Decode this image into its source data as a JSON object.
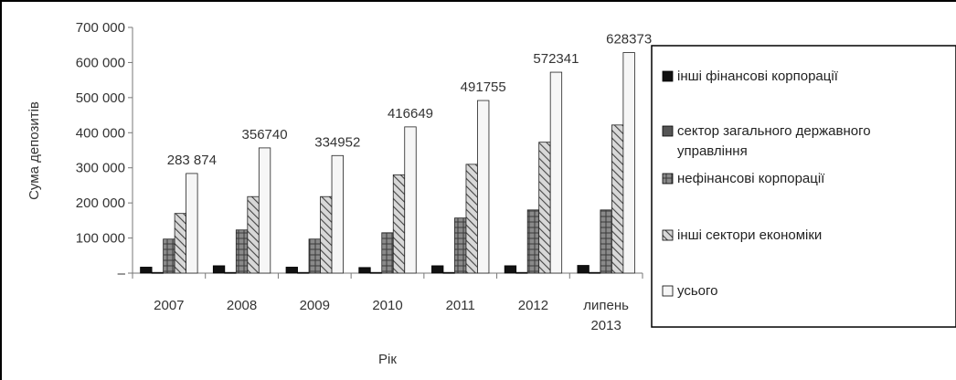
{
  "chart_data": {
    "type": "bar",
    "title": "",
    "xlabel": "Рік",
    "ylabel": "Сума депозитів",
    "ylim": [
      0,
      700000
    ],
    "yticks": [
      "–",
      "100 000",
      "200 000",
      "300 000",
      "400 000",
      "500 000",
      "600 000",
      "700 000"
    ],
    "categories": [
      "2007",
      "2008",
      "2009",
      "2010",
      "2011",
      "2012",
      "липень 2013"
    ],
    "series": [
      {
        "name": "інші фінансові корпорації",
        "values": [
          17000,
          21000,
          17000,
          16000,
          21000,
          21000,
          22000
        ]
      },
      {
        "name": "сектор загального державного управління",
        "values": [
          2000,
          2000,
          2000,
          2000,
          2000,
          2000,
          2000
        ]
      },
      {
        "name": "нефінансові корпорації",
        "values": [
          97000,
          123000,
          97000,
          115000,
          157000,
          180000,
          180000
        ]
      },
      {
        "name": "інші сектори економіки",
        "values": [
          170000,
          218000,
          218000,
          280000,
          310000,
          373000,
          422000
        ]
      },
      {
        "name": "усього",
        "values": [
          283874,
          356740,
          334952,
          416649,
          491755,
          572341,
          628373
        ]
      }
    ],
    "total_labels": [
      "283 874",
      "356740",
      "334952",
      "416649",
      "491755",
      "572341",
      "628373"
    ],
    "legend_position": "right",
    "grid": false
  },
  "colors": {
    "black": "#111111",
    "dark": "#6a6a6a",
    "hatch": "#7a7a7a",
    "white": "#f4f4f4"
  }
}
